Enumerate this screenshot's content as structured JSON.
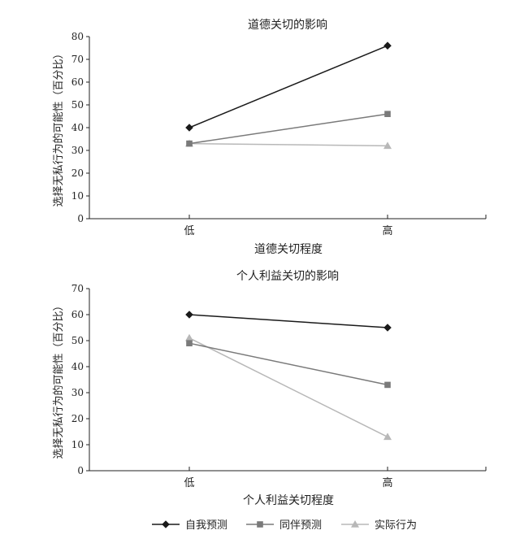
{
  "colors": {
    "self": "#1a1a1a",
    "peer": "#7a7a7a",
    "actual": "#b8b8b8",
    "axis": "#222222"
  },
  "legend": [
    {
      "label": "自我预测",
      "color": "#1a1a1a",
      "marker": "diamond"
    },
    {
      "label": "同伴预测",
      "color": "#7a7a7a",
      "marker": "square"
    },
    {
      "label": "实际行为",
      "color": "#b8b8b8",
      "marker": "triangle"
    }
  ],
  "chart_data": [
    {
      "type": "line",
      "title": "道德关切的影响",
      "xlabel": "道德关切程度",
      "ylabel": "选择无私行为的可能性（百分比）",
      "categories": [
        "低",
        "高"
      ],
      "ylim": [
        0,
        80
      ],
      "yticks": [
        0,
        10,
        20,
        30,
        40,
        50,
        60,
        70,
        80
      ],
      "series": [
        {
          "name": "自我预测",
          "values": [
            40,
            76
          ]
        },
        {
          "name": "同伴预测",
          "values": [
            33,
            46
          ]
        },
        {
          "name": "实际行为",
          "values": [
            33,
            32
          ]
        }
      ]
    },
    {
      "type": "line",
      "title": "个人利益关切的影响",
      "xlabel": "个人利益关切程度",
      "ylabel": "选择无私行为的可能性（百分比）",
      "categories": [
        "低",
        "高"
      ],
      "ylim": [
        0,
        70
      ],
      "yticks": [
        0,
        10,
        20,
        30,
        40,
        50,
        60,
        70
      ],
      "series": [
        {
          "name": "自我预测",
          "values": [
            60,
            55
          ]
        },
        {
          "name": "同伴预测",
          "values": [
            49,
            33
          ]
        },
        {
          "name": "实际行为",
          "values": [
            51,
            13
          ]
        }
      ]
    }
  ]
}
